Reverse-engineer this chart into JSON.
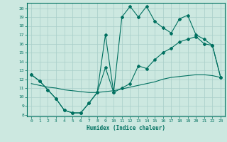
{
  "xlabel": "Humidex (Indice chaleur)",
  "bg_color": "#cce8e0",
  "grid_color": "#a8cec8",
  "line_color": "#007060",
  "xlim": [
    -0.5,
    23.5
  ],
  "ylim": [
    7.8,
    20.6
  ],
  "xticks": [
    0,
    1,
    2,
    3,
    4,
    5,
    6,
    7,
    8,
    9,
    10,
    11,
    12,
    13,
    14,
    15,
    16,
    17,
    18,
    19,
    20,
    21,
    22,
    23
  ],
  "yticks": [
    8,
    9,
    10,
    11,
    12,
    13,
    14,
    15,
    16,
    17,
    18,
    19,
    20
  ],
  "curve_top_x": [
    0,
    1,
    2,
    3,
    4,
    5,
    6,
    7,
    8,
    9,
    10,
    11,
    12,
    13,
    14,
    15,
    16,
    17,
    18,
    19,
    20,
    21,
    22,
    23
  ],
  "curve_top_y": [
    12.5,
    11.8,
    10.8,
    9.8,
    8.5,
    8.2,
    8.2,
    9.3,
    10.5,
    17.0,
    10.5,
    19.0,
    20.2,
    19.0,
    20.2,
    18.5,
    17.8,
    17.2,
    18.8,
    19.2,
    17.0,
    16.5,
    15.8,
    12.2
  ],
  "curve_mid_x": [
    0,
    1,
    2,
    3,
    4,
    5,
    6,
    7,
    8,
    9,
    10,
    11,
    12,
    13,
    14,
    15,
    16,
    17,
    18,
    19,
    20,
    21,
    22,
    23
  ],
  "curve_mid_y": [
    12.5,
    11.8,
    10.8,
    9.8,
    8.5,
    8.2,
    8.2,
    9.3,
    10.5,
    13.3,
    10.5,
    11.0,
    11.5,
    13.5,
    13.2,
    14.2,
    15.0,
    15.5,
    16.2,
    16.5,
    16.8,
    16.0,
    15.8,
    12.2
  ],
  "curve_low_x": [
    0,
    1,
    2,
    3,
    4,
    5,
    6,
    7,
    8,
    9,
    10,
    11,
    12,
    13,
    14,
    15,
    16,
    17,
    18,
    19,
    20,
    21,
    22,
    23
  ],
  "curve_low_y": [
    11.5,
    11.3,
    11.1,
    11.0,
    10.8,
    10.7,
    10.6,
    10.5,
    10.5,
    10.6,
    10.7,
    10.9,
    11.1,
    11.3,
    11.5,
    11.7,
    12.0,
    12.2,
    12.3,
    12.4,
    12.5,
    12.5,
    12.4,
    12.2
  ]
}
